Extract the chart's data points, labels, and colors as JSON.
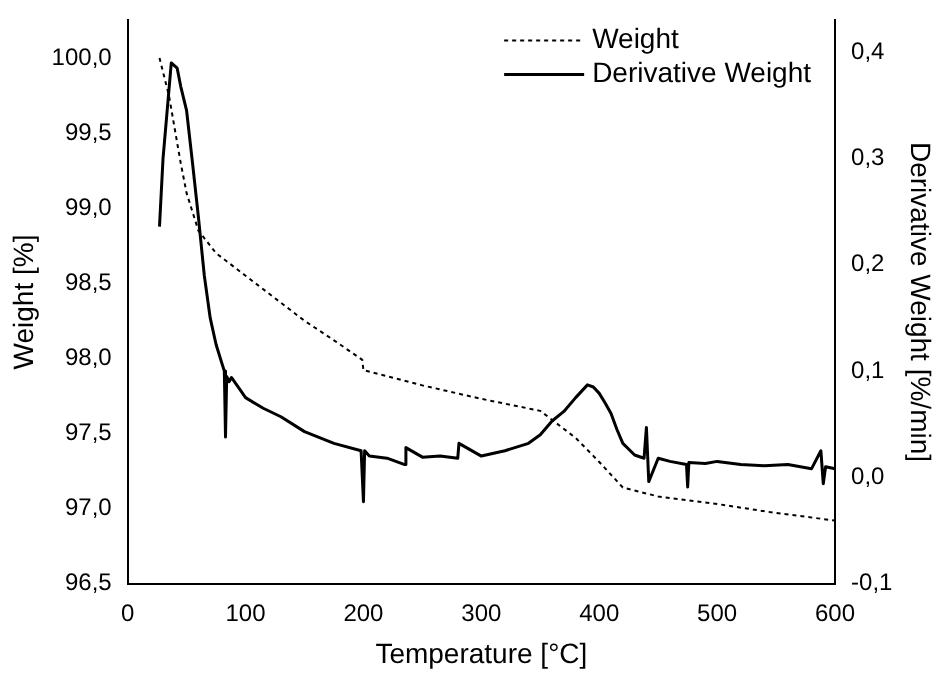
{
  "chart_data": {
    "type": "line",
    "xlabel": "Temperature [°C]",
    "ylabel": "Weight [%]",
    "y2label": "Derivative Weight [%/min]",
    "xlim": [
      0,
      600
    ],
    "xticks": [
      0,
      100,
      200,
      300,
      400,
      500,
      600
    ],
    "ylim": [
      96.5,
      100.25
    ],
    "yticks": [
      {
        "value": 96.5,
        "label": "96,5"
      },
      {
        "value": 97,
        "label": "97,0"
      },
      {
        "value": 97.5,
        "label": "97,5"
      },
      {
        "value": 98,
        "label": "98,0"
      },
      {
        "value": 98.5,
        "label": "98,5"
      },
      {
        "value": 99,
        "label": "99,0"
      },
      {
        "value": 99.5,
        "label": "99,5"
      },
      {
        "value": 100,
        "label": "100,0"
      }
    ],
    "y2lim": [
      -0.1,
      0.43
    ],
    "y2ticks": [
      {
        "value": -0.1,
        "label": "-0,1"
      },
      {
        "value": 0,
        "label": "0,0"
      },
      {
        "value": 0.1,
        "label": "0,1"
      },
      {
        "value": 0.2,
        "label": "0,2"
      },
      {
        "value": 0.3,
        "label": "0,3"
      },
      {
        "value": 0.4,
        "label": "0,4"
      }
    ],
    "grid": false,
    "legend": "top right",
    "marker": "none",
    "series": [
      {
        "name": "Weight",
        "color": "#000000",
        "line_style": "dotted",
        "x": [
          27,
          35,
          45,
          50,
          60,
          75,
          100,
          125,
          150,
          175,
          199,
          200,
          201,
          250,
          300,
          350,
          380,
          400,
          420,
          450,
          500,
          550,
          600
        ],
        "values": [
          100,
          99.75,
          99.3,
          99.1,
          98.85,
          98.7,
          98.55,
          98.4,
          98.25,
          98.12,
          97.99,
          97.92,
          97.92,
          97.82,
          97.73,
          97.65,
          97.47,
          97.31,
          97.14,
          97.08,
          97.03,
          96.97,
          96.92
        ]
      },
      {
        "name": "Derivative Weight",
        "color": "#000000",
        "line_style": "solid",
        "axis": "y2",
        "x": [
          27,
          30,
          37,
          42,
          45,
          50,
          55,
          60,
          65,
          70,
          75,
          80,
          82,
          83,
          84,
          86,
          88,
          95,
          100,
          115,
          130,
          150,
          175,
          198,
          200,
          201,
          205,
          220,
          235,
          236,
          250,
          265,
          280,
          281,
          300,
          320,
          340,
          350,
          360,
          370,
          380,
          390,
          395,
          400,
          405,
          410,
          415,
          420,
          430,
          438,
          440,
          442,
          450,
          460,
          474,
          475,
          476,
          490,
          500,
          520,
          540,
          560,
          580,
          588,
          590,
          592,
          600
        ],
        "values": [
          0.236,
          0.3,
          0.39,
          0.385,
          0.368,
          0.345,
          0.296,
          0.245,
          0.19,
          0.15,
          0.125,
          0.107,
          0.1,
          0.038,
          0.095,
          0.09,
          0.094,
          0.083,
          0.075,
          0.065,
          0.057,
          0.043,
          0.032,
          0.025,
          -0.023,
          0.025,
          0.02,
          0.018,
          0.012,
          0.028,
          0.019,
          0.02,
          0.018,
          0.032,
          0.02,
          0.025,
          0.032,
          0.04,
          0.053,
          0.062,
          0.075,
          0.087,
          0.085,
          0.079,
          0.07,
          0.06,
          0.045,
          0.032,
          0.021,
          0.018,
          0.047,
          -0.004,
          0.018,
          0.015,
          0.012,
          -0.009,
          0.014,
          0.013,
          0.015,
          0.012,
          0.011,
          0.012,
          0.008,
          0.025,
          -0.006,
          0.01,
          0.008
        ]
      }
    ]
  }
}
